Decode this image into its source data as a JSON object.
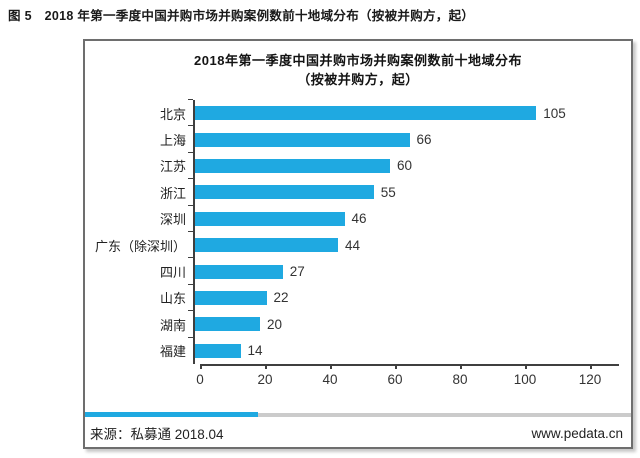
{
  "page": {
    "figure_caption": "图 5　2018 年第一季度中国并购市场并购案例数前十地域分布（按被并购方，起）"
  },
  "chart_data": {
    "type": "bar",
    "orientation": "horizontal",
    "title_line1": "2018年第一季度中国并购市场并购案例数前十地域分布",
    "title_line2": "（按被并购方，起）",
    "categories": [
      "北京",
      "上海",
      "江苏",
      "浙江",
      "深圳",
      "广东（除深圳）",
      "四川",
      "山东",
      "湖南",
      "福建"
    ],
    "values": [
      105,
      66,
      60,
      55,
      46,
      44,
      27,
      22,
      20,
      14
    ],
    "xlim": [
      0,
      120
    ],
    "x_ticks": [
      0,
      20,
      40,
      60,
      80,
      100,
      120
    ],
    "value_labels_shown": true,
    "grid": false,
    "legend": "none",
    "bar_color": "#1FA9E1",
    "axis_color": "#3f3f3f"
  },
  "footer": {
    "source": "来源：私募通 2018.04",
    "website": "www.pedata.cn"
  }
}
